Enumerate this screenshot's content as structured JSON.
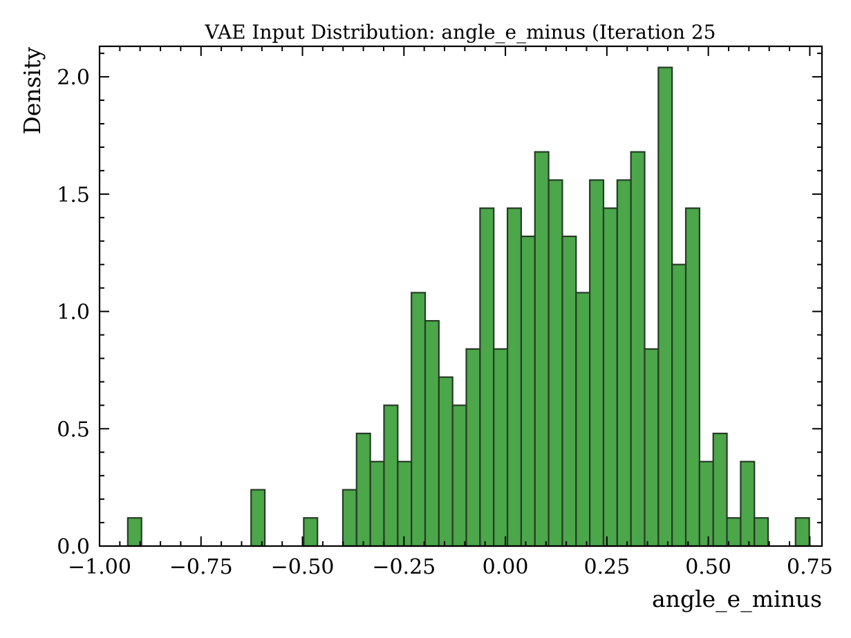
{
  "chart_data": {
    "type": "bar",
    "title": "VAE Input Distribution: angle_e_minus (Iteration 25",
    "xlabel": "angle_e_minus",
    "ylabel": "Density",
    "xlim": [
      -1.0,
      0.78
    ],
    "ylim": [
      0.0,
      2.13
    ],
    "x_ticks": [
      -1.0,
      -0.75,
      -0.5,
      -0.25,
      0.0,
      0.25,
      0.5,
      0.75
    ],
    "x_tick_labels": [
      "−1.00",
      "−0.75",
      "−0.50",
      "−0.25",
      "0.00",
      "0.25",
      "0.50",
      "0.75"
    ],
    "y_ticks": [
      0.0,
      0.5,
      1.0,
      1.5,
      2.0
    ],
    "y_tick_labels": [
      "0.0",
      "0.5",
      "1.0",
      "1.5",
      "2.0"
    ],
    "bin_width": 0.0338,
    "bins": [
      {
        "left": -0.9304,
        "density": 0.12
      },
      {
        "left": -0.6266,
        "density": 0.24
      },
      {
        "left": -0.4969,
        "density": 0.12
      },
      {
        "left": -0.4005,
        "density": 0.24
      },
      {
        "left": -0.3667,
        "density": 0.48
      },
      {
        "left": -0.3329,
        "density": 0.36
      },
      {
        "left": -0.2991,
        "density": 0.6
      },
      {
        "left": -0.2653,
        "density": 0.36
      },
      {
        "left": -0.2315,
        "density": 1.08
      },
      {
        "left": -0.1977,
        "density": 0.96
      },
      {
        "left": -0.1639,
        "density": 0.72
      },
      {
        "left": -0.1301,
        "density": 0.6
      },
      {
        "left": -0.0963,
        "density": 0.84
      },
      {
        "left": -0.0625,
        "density": 1.44
      },
      {
        "left": -0.0287,
        "density": 0.84
      },
      {
        "left": 0.0051,
        "density": 1.44
      },
      {
        "left": 0.0389,
        "density": 1.32
      },
      {
        "left": 0.0727,
        "density": 1.68
      },
      {
        "left": 0.1065,
        "density": 1.56
      },
      {
        "left": 0.1403,
        "density": 1.32
      },
      {
        "left": 0.1741,
        "density": 1.08
      },
      {
        "left": 0.2079,
        "density": 1.56
      },
      {
        "left": 0.2417,
        "density": 1.44
      },
      {
        "left": 0.2755,
        "density": 1.56
      },
      {
        "left": 0.3093,
        "density": 1.68
      },
      {
        "left": 0.3431,
        "density": 0.84
      },
      {
        "left": 0.3769,
        "density": 2.04
      },
      {
        "left": 0.4107,
        "density": 1.2
      },
      {
        "left": 0.4445,
        "density": 1.44
      },
      {
        "left": 0.4783,
        "density": 0.36
      },
      {
        "left": 0.5121,
        "density": 0.48
      },
      {
        "left": 0.5459,
        "density": 0.12
      },
      {
        "left": 0.5797,
        "density": 0.36
      },
      {
        "left": 0.6135,
        "density": 0.12
      },
      {
        "left": 0.7149,
        "density": 0.12
      }
    ],
    "bar_color": "#4ca64a",
    "edge_color": "#263b26",
    "grid": false,
    "legend": "none"
  }
}
